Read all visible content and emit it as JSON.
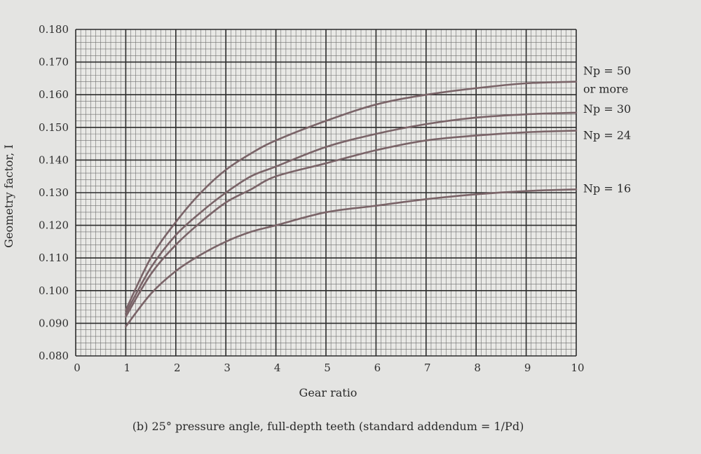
{
  "chart_data": {
    "type": "line",
    "title": "",
    "caption": "(b) 25° pressure angle, full-depth teeth (standard addendum = 1/Pd)",
    "xlabel": "Gear ratio",
    "ylabel": "Geometry factor, I",
    "xlim": [
      0,
      10
    ],
    "ylim": [
      0.08,
      0.18
    ],
    "x_ticks": [
      "0",
      "1",
      "2",
      "3",
      "4",
      "5",
      "6",
      "7",
      "8",
      "9",
      "10"
    ],
    "y_ticks": [
      "0.080",
      "0.090",
      "0.100",
      "0.110",
      "0.120",
      "0.130",
      "0.140",
      "0.150",
      "0.160",
      "0.170",
      "0.180"
    ],
    "grid": true,
    "x": [
      1,
      1.5,
      2,
      2.5,
      3,
      3.5,
      4,
      5,
      6,
      7,
      8,
      9,
      10
    ],
    "series": [
      {
        "name": "Np = 50 or more",
        "label_line1": "Np = 50",
        "label_line2": "or more",
        "values": [
          0.094,
          0.11,
          0.121,
          0.13,
          0.137,
          0.142,
          0.146,
          0.152,
          0.157,
          0.16,
          0.162,
          0.1635,
          0.164
        ]
      },
      {
        "name": "Np = 30",
        "label_line1": "Np = 30",
        "values": [
          0.093,
          0.107,
          0.117,
          0.124,
          0.13,
          0.135,
          0.138,
          0.144,
          0.148,
          0.151,
          0.153,
          0.154,
          0.1545
        ]
      },
      {
        "name": "Np = 24",
        "label_line1": "Np = 24",
        "values": [
          0.092,
          0.105,
          0.114,
          0.121,
          0.127,
          0.131,
          0.135,
          0.139,
          0.143,
          0.146,
          0.1475,
          0.1485,
          0.149
        ]
      },
      {
        "name": "Np = 16",
        "label_line1": "Np = 16",
        "values": [
          0.089,
          0.099,
          0.106,
          0.111,
          0.115,
          0.118,
          0.12,
          0.124,
          0.126,
          0.128,
          0.1295,
          0.1305,
          0.131
        ]
      }
    ],
    "colors": {
      "curve": "#7a6468",
      "grid_major": "#2b2b2b",
      "grid_minor": "#6e6e6e",
      "plot_bg": "#e9e9e6"
    }
  }
}
